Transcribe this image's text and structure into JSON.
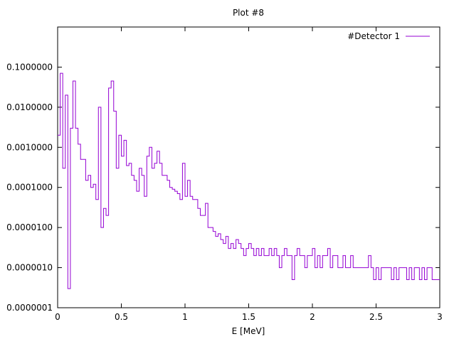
{
  "chart_data": {
    "type": "line",
    "title": "Plot #8",
    "xlabel": "E [MeV]",
    "ylabel": "",
    "xlim": [
      0,
      3
    ],
    "ylim": [
      1e-07,
      1
    ],
    "yscale": "log",
    "grid": false,
    "legend_position": "top-right",
    "x_ticks": [
      {
        "value": 0,
        "label": "0"
      },
      {
        "value": 0.5,
        "label": "0.5"
      },
      {
        "value": 1,
        "label": "1"
      },
      {
        "value": 1.5,
        "label": "1.5"
      },
      {
        "value": 2,
        "label": "2"
      },
      {
        "value": 2.5,
        "label": "2.5"
      },
      {
        "value": 3,
        "label": "3"
      }
    ],
    "y_ticks": [
      {
        "value": 1e-07,
        "label": "0.0000001"
      },
      {
        "value": 1e-06,
        "label": "0.0000010"
      },
      {
        "value": 1e-05,
        "label": "0.0000100"
      },
      {
        "value": 0.0001,
        "label": "0.0001000"
      },
      {
        "value": 0.001,
        "label": "0.0010000"
      },
      {
        "value": 0.01,
        "label": "0.0100000"
      },
      {
        "value": 0.1,
        "label": "0.1000000"
      }
    ],
    "series": [
      {
        "name": "#Detector 1",
        "color": "#9400d3",
        "x": [
          0.0,
          0.02,
          0.04,
          0.06,
          0.08,
          0.1,
          0.12,
          0.14,
          0.16,
          0.18,
          0.2,
          0.22,
          0.24,
          0.26,
          0.28,
          0.3,
          0.32,
          0.34,
          0.36,
          0.38,
          0.4,
          0.42,
          0.44,
          0.46,
          0.48,
          0.5,
          0.52,
          0.54,
          0.56,
          0.58,
          0.6,
          0.62,
          0.64,
          0.66,
          0.68,
          0.7,
          0.72,
          0.74,
          0.76,
          0.78,
          0.8,
          0.82,
          0.84,
          0.86,
          0.88,
          0.9,
          0.92,
          0.94,
          0.96,
          0.98,
          1.0,
          1.02,
          1.04,
          1.06,
          1.08,
          1.1,
          1.12,
          1.14,
          1.16,
          1.18,
          1.2,
          1.22,
          1.24,
          1.26,
          1.28,
          1.3,
          1.32,
          1.34,
          1.36,
          1.38,
          1.4,
          1.42,
          1.44,
          1.46,
          1.48,
          1.5,
          1.52,
          1.54,
          1.56,
          1.58,
          1.6,
          1.62,
          1.64,
          1.66,
          1.68,
          1.7,
          1.72,
          1.74,
          1.76,
          1.78,
          1.8,
          1.82,
          1.84,
          1.86,
          1.88,
          1.9,
          1.92,
          1.94,
          1.96,
          1.98,
          2.0,
          2.02,
          2.04,
          2.06,
          2.08,
          2.1,
          2.12,
          2.14,
          2.16,
          2.18,
          2.2,
          2.22,
          2.24,
          2.26,
          2.28,
          2.3,
          2.32,
          2.34,
          2.36,
          2.38,
          2.4,
          2.42,
          2.44,
          2.46,
          2.48,
          2.5,
          2.52,
          2.54,
          2.56,
          2.58,
          2.6,
          2.62,
          2.64,
          2.66,
          2.68,
          2.7,
          2.72,
          2.74,
          2.76,
          2.78,
          2.8,
          2.82,
          2.84,
          2.86,
          2.88,
          2.9,
          2.92,
          2.94,
          2.96,
          2.98,
          3.0
        ],
        "y": [
          0.002,
          0.07,
          0.0003,
          0.02,
          3e-07,
          0.003,
          0.045,
          0.003,
          0.0012,
          0.0005,
          0.0005,
          0.00015,
          0.0002,
          0.0001,
          0.00012,
          5e-05,
          0.01,
          1e-05,
          3e-05,
          2e-05,
          0.03,
          0.045,
          0.008,
          0.0003,
          0.002,
          0.0006,
          0.0015,
          0.00035,
          0.0004,
          0.0002,
          0.00015,
          8e-05,
          0.0003,
          0.0002,
          6e-05,
          0.0006,
          0.001,
          0.0003,
          0.0004,
          0.0008,
          0.0004,
          0.0002,
          0.0002,
          0.00015,
          0.0001,
          9e-05,
          8e-05,
          7e-05,
          5e-05,
          0.0004,
          6e-05,
          0.00015,
          6e-05,
          5e-05,
          5e-05,
          3e-05,
          2e-05,
          2e-05,
          4e-05,
          1e-05,
          1e-05,
          8e-06,
          6e-06,
          7e-06,
          5e-06,
          4e-06,
          6e-06,
          3e-06,
          4e-06,
          3e-06,
          5e-06,
          4e-06,
          3e-06,
          2e-06,
          3e-06,
          4e-06,
          3e-06,
          2e-06,
          3e-06,
          2e-06,
          3e-06,
          2e-06,
          2e-06,
          3e-06,
          2e-06,
          3e-06,
          2e-06,
          1e-06,
          2e-06,
          3e-06,
          2e-06,
          2e-06,
          5e-07,
          2e-06,
          3e-06,
          2e-06,
          2e-06,
          1e-06,
          2e-06,
          2e-06,
          3e-06,
          1e-06,
          2e-06,
          1e-06,
          2e-06,
          2e-06,
          3e-06,
          1e-06,
          2e-06,
          2e-06,
          1e-06,
          1e-06,
          2e-06,
          1e-06,
          1e-06,
          2e-06,
          1e-06,
          1e-06,
          1e-06,
          1e-06,
          1e-06,
          1e-06,
          2e-06,
          1e-06,
          5e-07,
          1e-06,
          5e-07,
          1e-06,
          1e-06,
          1e-06,
          1e-06,
          5e-07,
          1e-06,
          5e-07,
          1e-06,
          1e-06,
          1e-06,
          5e-07,
          1e-06,
          5e-07,
          1e-06,
          1e-06,
          5e-07,
          1e-06,
          5e-07,
          1e-06,
          1e-06,
          5e-07,
          5e-07,
          5e-07,
          5e-07
        ]
      }
    ]
  }
}
